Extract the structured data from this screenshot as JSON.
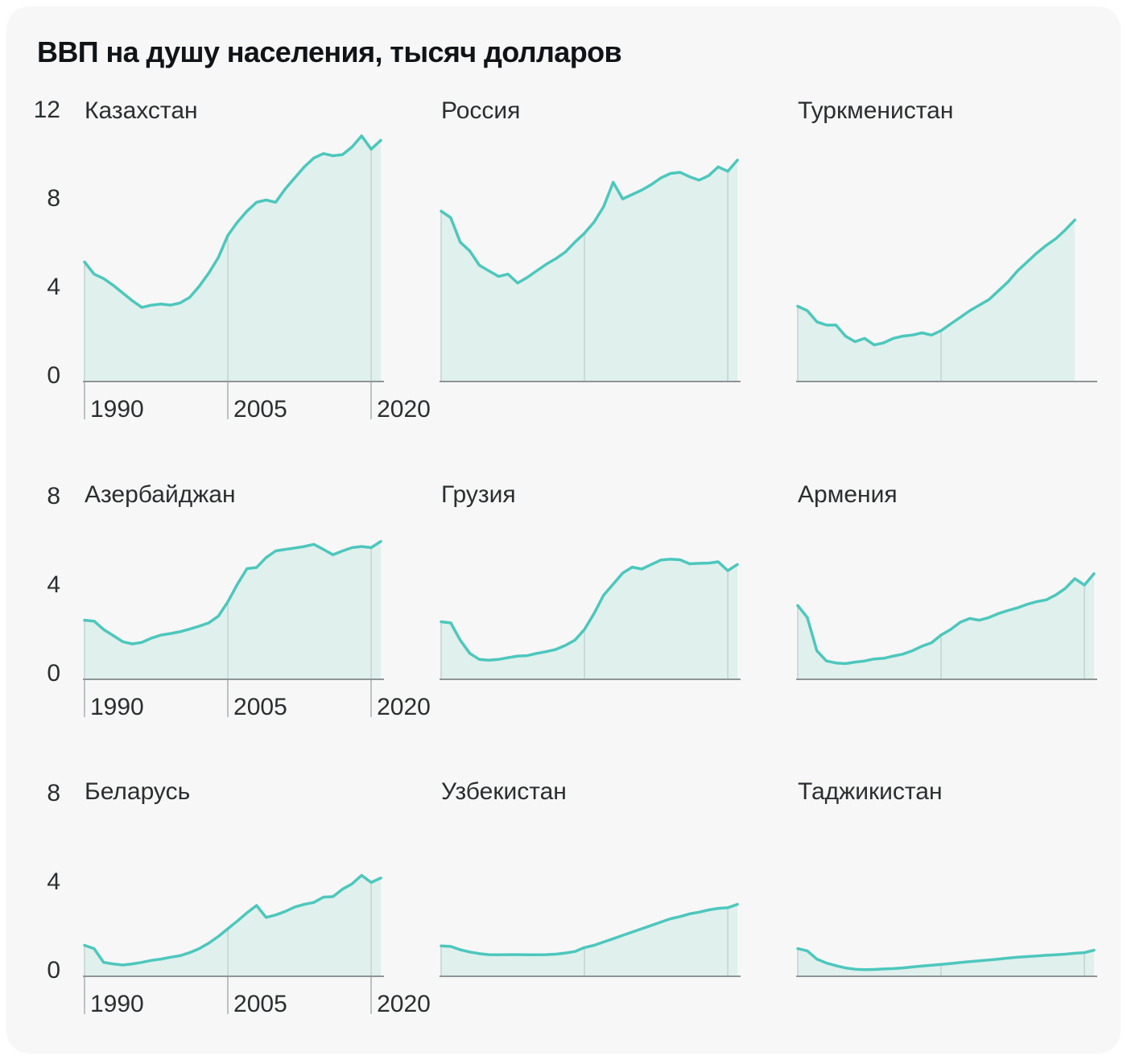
{
  "title": "ВВП на душу населения, тысяч долларов",
  "chart_data": {
    "type": "area",
    "x_start": 1990,
    "x_ticks": [
      1990,
      2005,
      2020
    ],
    "x_tick_labels": [
      "1990",
      "2005",
      "2020"
    ],
    "grid": true,
    "legend": "none",
    "line_color": "#4dc7bd",
    "fill_color": "#dff0ed",
    "grid_color": "#c3d3d1",
    "axis_color": "#8f9596",
    "charts": [
      {
        "key": "kazakhstan",
        "name": "Казахстан",
        "ylim": [
          0,
          12
        ],
        "y_ticks": [
          12,
          8,
          4,
          0
        ],
        "show_axis_labels": true,
        "values": [
          5.4,
          4.85,
          4.65,
          4.35,
          4.0,
          3.65,
          3.35,
          3.45,
          3.5,
          3.45,
          3.55,
          3.8,
          4.3,
          4.9,
          5.6,
          6.6,
          7.2,
          7.7,
          8.1,
          8.2,
          8.1,
          8.7,
          9.2,
          9.7,
          10.1,
          10.3,
          10.2,
          10.25,
          10.6,
          11.1,
          10.5,
          10.9
        ]
      },
      {
        "key": "russia",
        "name": "Россия",
        "ylim": [
          0,
          12
        ],
        "y_ticks": [],
        "show_axis_labels": false,
        "values": [
          7.7,
          7.4,
          6.3,
          5.9,
          5.25,
          5.0,
          4.75,
          4.85,
          4.45,
          4.7,
          5.0,
          5.3,
          5.55,
          5.85,
          6.3,
          6.7,
          7.2,
          7.9,
          9.0,
          8.25,
          8.45,
          8.65,
          8.9,
          9.2,
          9.4,
          9.45,
          9.25,
          9.1,
          9.3,
          9.7,
          9.5,
          10.0
        ]
      },
      {
        "key": "turkmenistan",
        "name": "Туркменистан",
        "ylim": [
          0,
          12
        ],
        "y_ticks": [],
        "show_axis_labels": false,
        "values": [
          3.4,
          3.2,
          2.7,
          2.55,
          2.55,
          2.05,
          1.8,
          1.95,
          1.65,
          1.75,
          1.95,
          2.05,
          2.1,
          2.2,
          2.1,
          2.3,
          2.6,
          2.9,
          3.2,
          3.45,
          3.7,
          4.1,
          4.5,
          5.0,
          5.4,
          5.8,
          6.15,
          6.45,
          6.85,
          7.3
        ]
      },
      {
        "key": "azerbaijan",
        "name": "Азербайджан",
        "ylim": [
          0,
          8
        ],
        "y_ticks": [
          8,
          4,
          0
        ],
        "show_axis_labels": true,
        "values": [
          2.67,
          2.63,
          2.25,
          1.98,
          1.7,
          1.6,
          1.67,
          1.86,
          2.0,
          2.07,
          2.15,
          2.27,
          2.4,
          2.55,
          2.85,
          3.5,
          4.3,
          5.0,
          5.05,
          5.5,
          5.8,
          5.87,
          5.93,
          6.0,
          6.1,
          5.87,
          5.63,
          5.8,
          5.95,
          6.0,
          5.95,
          6.23
        ]
      },
      {
        "key": "georgia",
        "name": "Грузия",
        "ylim": [
          0,
          8
        ],
        "y_ticks": [],
        "show_axis_labels": false,
        "values": [
          2.6,
          2.55,
          1.77,
          1.17,
          0.9,
          0.86,
          0.9,
          0.98,
          1.05,
          1.07,
          1.17,
          1.25,
          1.35,
          1.53,
          1.77,
          2.25,
          2.97,
          3.8,
          4.3,
          4.8,
          5.07,
          4.98,
          5.19,
          5.39,
          5.43,
          5.4,
          5.22,
          5.24,
          5.25,
          5.31,
          4.91,
          5.19
        ]
      },
      {
        "key": "armenia",
        "name": "Армения",
        "ylim": [
          0,
          8
        ],
        "y_ticks": [],
        "show_axis_labels": false,
        "values": [
          3.33,
          2.79,
          1.29,
          0.83,
          0.74,
          0.71,
          0.78,
          0.83,
          0.92,
          0.95,
          1.05,
          1.14,
          1.29,
          1.5,
          1.65,
          2.0,
          2.25,
          2.58,
          2.75,
          2.67,
          2.79,
          2.97,
          3.11,
          3.23,
          3.39,
          3.51,
          3.59,
          3.81,
          4.11,
          4.55,
          4.26,
          4.77
        ]
      },
      {
        "key": "belarus",
        "name": "Беларусь",
        "ylim": [
          0,
          8
        ],
        "y_ticks": [
          8,
          4,
          0
        ],
        "show_axis_labels": true,
        "values": [
          1.4,
          1.25,
          0.63,
          0.56,
          0.51,
          0.56,
          0.63,
          0.72,
          0.78,
          0.86,
          0.93,
          1.07,
          1.25,
          1.5,
          1.8,
          2.15,
          2.5,
          2.87,
          3.2,
          2.66,
          2.77,
          2.93,
          3.13,
          3.25,
          3.34,
          3.58,
          3.6,
          3.94,
          4.18,
          4.56,
          4.24,
          4.44
        ]
      },
      {
        "key": "uzbekistan",
        "name": "Узбекистан",
        "ylim": [
          0,
          8
        ],
        "y_ticks": [],
        "show_axis_labels": false,
        "values": [
          1.37,
          1.35,
          1.2,
          1.1,
          1.02,
          0.98,
          0.97,
          0.98,
          0.98,
          0.97,
          0.97,
          0.98,
          1.0,
          1.05,
          1.12,
          1.3,
          1.4,
          1.55,
          1.7,
          1.85,
          2.0,
          2.15,
          2.3,
          2.45,
          2.6,
          2.7,
          2.82,
          2.9,
          3.0,
          3.07,
          3.1,
          3.25
        ]
      },
      {
        "key": "tajikistan",
        "name": "Таджикистан",
        "ylim": [
          0,
          8
        ],
        "y_ticks": [],
        "show_axis_labels": false,
        "values": [
          1.25,
          1.15,
          0.78,
          0.6,
          0.48,
          0.38,
          0.32,
          0.3,
          0.31,
          0.33,
          0.35,
          0.38,
          0.42,
          0.46,
          0.5,
          0.54,
          0.58,
          0.62,
          0.66,
          0.7,
          0.74,
          0.78,
          0.82,
          0.86,
          0.89,
          0.92,
          0.95,
          0.97,
          1.0,
          1.04,
          1.07,
          1.18
        ]
      }
    ]
  }
}
